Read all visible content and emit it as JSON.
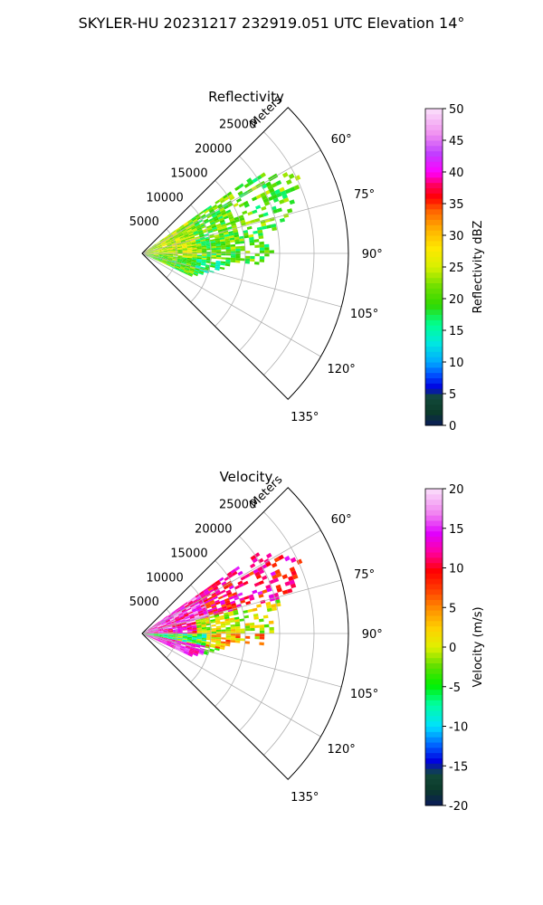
{
  "suptitle": "SKYLER-HU  20231217  232919.051 UTC Elevation 14°",
  "chart_data": [
    {
      "type": "heatmap",
      "subtype": "polar sector (radar PPI)",
      "title": "Reflectivity",
      "radial_axis_label": "Meters",
      "radial_ticks": [
        5000,
        10000,
        15000,
        20000,
        25000
      ],
      "radial_tick_labels": [
        "5000",
        "10000",
        "15000",
        "20000",
        "25000"
      ],
      "angle_ticks_deg": [
        60,
        75,
        90,
        105,
        120,
        135
      ],
      "angle_tick_labels": [
        "60°",
        "75°",
        "90°",
        "105°",
        "120°",
        "135°"
      ],
      "angle_range_deg": [
        45,
        135
      ],
      "rmax": 30000,
      "grid": true,
      "colorbar": {
        "label": "Reflectivity dBZ",
        "range": [
          0,
          50
        ],
        "ticks": [
          0,
          5,
          10,
          15,
          20,
          25,
          30,
          35,
          40,
          45,
          50
        ],
        "colormap": "pyart HomeyerRainbow-like"
      },
      "echo_summary": {
        "dominant_value_range": [
          15,
          26
        ],
        "max_range_m": 25000,
        "coverage_deg": [
          55,
          115
        ]
      }
    },
    {
      "type": "heatmap",
      "subtype": "polar sector (radar PPI)",
      "title": "Velocity",
      "radial_axis_label": "Meters",
      "radial_ticks": [
        5000,
        10000,
        15000,
        20000,
        25000
      ],
      "radial_tick_labels": [
        "5000",
        "10000",
        "15000",
        "20000",
        "25000"
      ],
      "angle_ticks_deg": [
        60,
        75,
        90,
        105,
        120,
        135
      ],
      "angle_tick_labels": [
        "60°",
        "75°",
        "90°",
        "105°",
        "120°",
        "135°"
      ],
      "angle_range_deg": [
        45,
        135
      ],
      "rmax": 30000,
      "grid": true,
      "colorbar": {
        "label": "Velocity (m/s)",
        "range": [
          -20,
          20
        ],
        "ticks": [
          -20,
          -15,
          -10,
          -5,
          0,
          5,
          10,
          15,
          20
        ],
        "colormap": "diverging rainbow"
      },
      "echo_summary": {
        "dominant_value_range": [
          -12,
          15
        ],
        "max_range_m": 25000,
        "coverage_deg": [
          55,
          115
        ]
      }
    }
  ]
}
